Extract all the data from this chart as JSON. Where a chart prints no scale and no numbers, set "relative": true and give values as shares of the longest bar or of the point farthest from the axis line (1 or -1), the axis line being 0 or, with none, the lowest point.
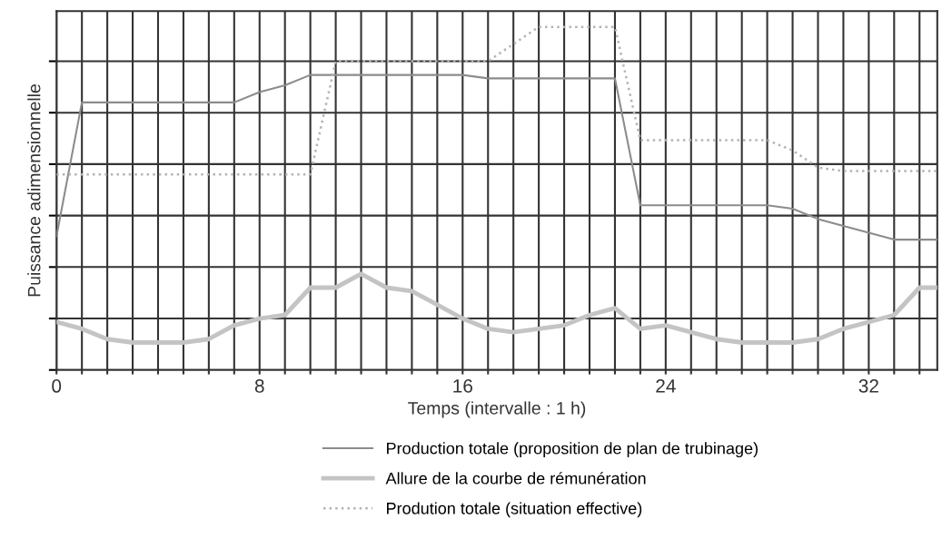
{
  "chart_data": {
    "type": "line",
    "relative": true,
    "xlabel": "Temps (intervalle : 1 h)",
    "ylabel": "Puissance adimensionnelle",
    "xlim": [
      0,
      34.7
    ],
    "xticks": [
      0,
      {
        "value": 1,
        "label": null
      },
      {
        "value": 2,
        "label": null
      },
      {
        "value": 3,
        "label": null
      },
      {
        "value": 4,
        "label": null
      },
      {
        "value": 5,
        "label": null
      },
      {
        "value": 6,
        "label": null
      },
      {
        "value": 7,
        "label": null
      },
      8,
      {
        "value": 9,
        "label": null
      },
      {
        "value": 10,
        "label": null
      },
      {
        "value": 11,
        "label": null
      },
      {
        "value": 12,
        "label": null
      },
      {
        "value": 13,
        "label": null
      },
      {
        "value": 14,
        "label": null
      },
      {
        "value": 15,
        "label": null
      },
      16,
      {
        "value": 17,
        "label": null
      },
      {
        "value": 18,
        "label": null
      },
      {
        "value": 19,
        "label": null
      },
      {
        "value": 20,
        "label": null
      },
      {
        "value": 21,
        "label": null
      },
      {
        "value": 22,
        "label": null
      },
      {
        "value": 23,
        "label": null
      },
      24,
      {
        "value": 25,
        "label": null
      },
      {
        "value": 26,
        "label": null
      },
      {
        "value": 27,
        "label": null
      },
      {
        "value": 28,
        "label": null
      },
      {
        "value": 29,
        "label": null
      },
      {
        "value": 30,
        "label": null
      },
      {
        "value": 31,
        "label": null
      },
      32,
      {
        "value": 33,
        "label": null
      },
      {
        "value": 34,
        "label": null
      }
    ],
    "x": [
      0,
      1,
      2,
      3,
      4,
      5,
      6,
      7,
      8,
      9,
      10,
      11,
      12,
      13,
      14,
      15,
      16,
      17,
      18,
      19,
      20,
      21,
      22,
      23,
      24,
      25,
      26,
      27,
      28,
      29,
      30,
      31,
      32,
      33,
      34,
      34.7
    ],
    "grid": true,
    "legend": "bottom",
    "marker": "none",
    "series": [
      {
        "name": "Production totale (proposition de plan de trubinage)",
        "color": "#8c8c8c",
        "line_style": "solid",
        "values": [
          0.39,
          0.78,
          0.78,
          0.78,
          0.78,
          0.78,
          0.78,
          0.78,
          0.81,
          0.83,
          0.86,
          0.86,
          0.86,
          0.86,
          0.86,
          0.86,
          0.86,
          0.85,
          0.85,
          0.85,
          0.85,
          0.85,
          0.85,
          0.48,
          0.48,
          0.48,
          0.48,
          0.48,
          0.48,
          0.47,
          0.44,
          0.42,
          0.4,
          0.38,
          0.38,
          0.38
        ]
      },
      {
        "name": "Allure de la courbe de rémunération",
        "color": "#c4c4c4",
        "line_style": "solid",
        "values": [
          0.14,
          0.12,
          0.09,
          0.08,
          0.08,
          0.08,
          0.09,
          0.13,
          0.15,
          0.16,
          0.24,
          0.24,
          0.28,
          0.24,
          0.23,
          0.19,
          0.15,
          0.12,
          0.11,
          0.12,
          0.13,
          0.16,
          0.18,
          0.12,
          0.13,
          0.11,
          0.09,
          0.08,
          0.08,
          0.08,
          0.09,
          0.12,
          0.14,
          0.16,
          0.24,
          0.24
        ]
      },
      {
        "name": "Prodution totale (situation effective)",
        "color": "#b4b4b4",
        "line_style": "dotted",
        "values": [
          0.57,
          0.57,
          0.57,
          0.57,
          0.57,
          0.57,
          0.57,
          0.57,
          0.57,
          0.57,
          0.57,
          0.9,
          0.9,
          0.9,
          0.9,
          0.9,
          0.9,
          0.9,
          0.95,
          1.0,
          1.0,
          1.0,
          1.0,
          0.67,
          0.67,
          0.67,
          0.67,
          0.67,
          0.67,
          0.64,
          0.59,
          0.58,
          0.58,
          0.58,
          0.58,
          0.58
        ]
      }
    ]
  }
}
